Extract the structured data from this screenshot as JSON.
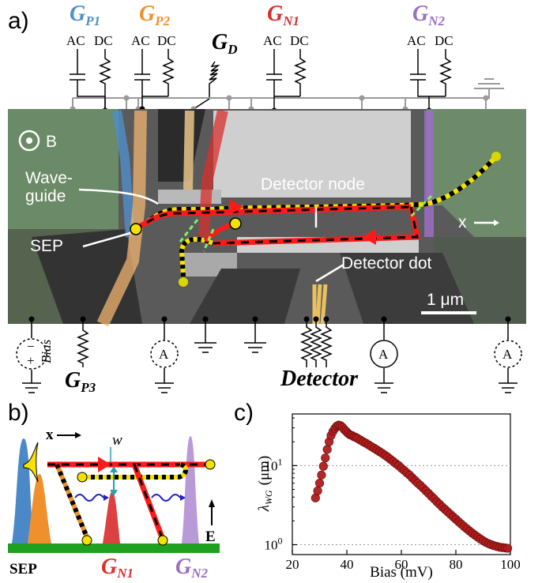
{
  "panel_labels": {
    "a": "a)",
    "b": "b)",
    "c": "c)"
  },
  "panel_a": {
    "gates_top": [
      {
        "name": "G",
        "sub": "P1",
        "color": "#4f8fcc"
      },
      {
        "name": "G",
        "sub": "P2",
        "color": "#f0902d"
      },
      {
        "name": "G",
        "sub": "N1",
        "color": "#d8302e"
      },
      {
        "name": "G",
        "sub": "N2",
        "color": "#9b6fc4"
      }
    ],
    "gate_d": {
      "name": "G",
      "sub": "D"
    },
    "ac_label": "AC",
    "dc_label": "DC",
    "b_field_label": "B",
    "waveguide_label_line1": "Wave-",
    "waveguide_label_line2": "guide",
    "detector_node_label": "Detector node",
    "detector_dot_label": "Detector dot",
    "sep_label": "SEP",
    "x_axis_label": "x",
    "scale_bar_label": "1 μm",
    "bias_label": "Bias",
    "bias_minus": "−",
    "bias_plus": "+",
    "ammeter_label": "A",
    "gate_p3": {
      "name": "G",
      "sub": "P3"
    },
    "detector_label": "Detector",
    "colors": {
      "background": "#5a5a5a",
      "gate_green": "#6b8a67",
      "metal": "#c9c9c9",
      "edge_red": "#ff1a1a",
      "edge_yellow": "#f2e200"
    }
  },
  "panel_b": {
    "x_label": "x",
    "w_label": "w",
    "e_label": "E",
    "sep_label": "SEP",
    "gate_n1": {
      "name": "G",
      "sub": "N1"
    },
    "gate_n2": {
      "name": "G",
      "sub": "N2"
    }
  },
  "chart_data": {
    "type": "scatter",
    "xlabel": "Bias (mV)",
    "ylabel_main": "λ",
    "ylabel_sub": "WG",
    "ylabel_units": "(μm)",
    "x_ticks": [
      20,
      40,
      60,
      80,
      100
    ],
    "y_ticks": [
      {
        "value": 1,
        "base": "10",
        "exp": "0"
      },
      {
        "value": 10,
        "base": "10",
        "exp": "1"
      }
    ],
    "xlim": [
      20,
      100
    ],
    "ylim": [
      0.75,
      45
    ],
    "y_scale": "log",
    "grid": "horizontal dotted at decades",
    "marker_color": "#b01c1c",
    "x": [
      28.5,
      29.3,
      30.0,
      30.7,
      31.4,
      32.1,
      32.8,
      33.5,
      34.2,
      34.9,
      35.6,
      36.3,
      37.0,
      37.7,
      38.4,
      39.1,
      39.8,
      40.5,
      41.2,
      41.9,
      42.6,
      43.3,
      44.0,
      45.0,
      46.0,
      47.0,
      48.0,
      49.0,
      50.0,
      51.0,
      52.0,
      53.0,
      54.0,
      55.0,
      56.0,
      57.0,
      58.0,
      59.0,
      60.0,
      61.0,
      62.0,
      63.0,
      64.0,
      65.0,
      66.0,
      67.0,
      68.0,
      69.0,
      70.0,
      71.0,
      72.0,
      73.0,
      74.0,
      75.0,
      76.0,
      77.0,
      78.0,
      79.0,
      80.0,
      81.0,
      82.0,
      83.0,
      84.0,
      85.0,
      86.0,
      87.0,
      88.0,
      89.0,
      90.0,
      91.0,
      92.0,
      93.0,
      94.0,
      95.0,
      96.0,
      97.0,
      98.0,
      99.0
    ],
    "y": [
      3.9,
      4.8,
      6.0,
      7.6,
      9.8,
      12.5,
      16.0,
      20.0,
      24.0,
      27.0,
      29.5,
      31.5,
      32.5,
      32.0,
      30.5,
      28.5,
      27.0,
      25.5,
      24.5,
      24.0,
      23.2,
      22.7,
      22.0,
      21.0,
      20.0,
      19.2,
      18.3,
      17.4,
      16.6,
      15.8,
      15.0,
      14.3,
      13.5,
      12.8,
      12.0,
      11.3,
      10.6,
      10.0,
      9.3,
      8.7,
      8.1,
      7.6,
      7.0,
      6.5,
      6.0,
      5.6,
      5.2,
      4.8,
      4.45,
      4.1,
      3.8,
      3.5,
      3.25,
      3.0,
      2.8,
      2.6,
      2.42,
      2.25,
      2.1,
      1.95,
      1.82,
      1.7,
      1.59,
      1.49,
      1.4,
      1.32,
      1.25,
      1.18,
      1.12,
      1.07,
      1.03,
      1.0,
      0.97,
      0.95,
      0.93,
      0.92,
      0.91,
      0.9
    ]
  }
}
